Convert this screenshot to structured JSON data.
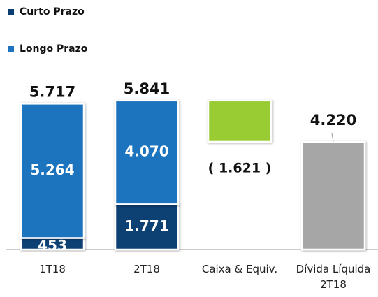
{
  "chart_data": {
    "type": "waterfall",
    "categories": [
      "1T18",
      "2T18",
      "Caixa & Equiv.",
      "Dívida Líquida 2T18"
    ],
    "series": [
      {
        "name": "Curto Prazo",
        "color": "#0b3f73",
        "values": [
          453,
          1771,
          null,
          null
        ],
        "value_labels": [
          "453",
          "1.771",
          null,
          null
        ]
      },
      {
        "name": "Longo Prazo",
        "color": "#1f73be",
        "values": [
          5264,
          4070,
          null,
          null
        ],
        "value_labels": [
          "5.264",
          "4.070",
          null,
          null
        ]
      }
    ],
    "totals": {
      "values": [
        5717,
        5841
      ],
      "value_labels": [
        "5.717",
        "5.841"
      ]
    },
    "adjustment": {
      "value": -1621,
      "label": "( 1.621 )",
      "color": "#99cc33"
    },
    "result": {
      "value": 4220,
      "label": "4.220",
      "color": "#a6a6a6"
    }
  }
}
